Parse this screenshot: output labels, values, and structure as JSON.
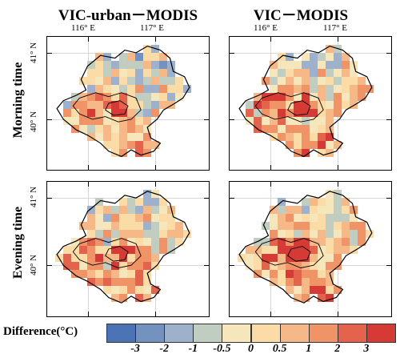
{
  "columns": [
    {
      "title": "VIC-urban－MODIS"
    },
    {
      "title": "VIC－MODIS"
    }
  ],
  "rows": [
    {
      "title": "Morning time"
    },
    {
      "title": "Evening time"
    }
  ],
  "axes": {
    "lon_labels": [
      "116° E",
      "117° E"
    ],
    "lat_labels": [
      "41° N",
      "40° N"
    ]
  },
  "legend": {
    "label": "Difference(°C)",
    "colors": [
      "#4a74b4",
      "#7492c0",
      "#9db0cc",
      "#c0cdc0",
      "#f6e6bc",
      "#fbdca6",
      "#f5b886",
      "#f09467",
      "#e4634c",
      "#d63a34"
    ],
    "ticks": [
      "-3",
      "-2",
      "-1",
      "-0.5",
      "0",
      "0.5",
      "1",
      "2",
      "3"
    ]
  }
}
